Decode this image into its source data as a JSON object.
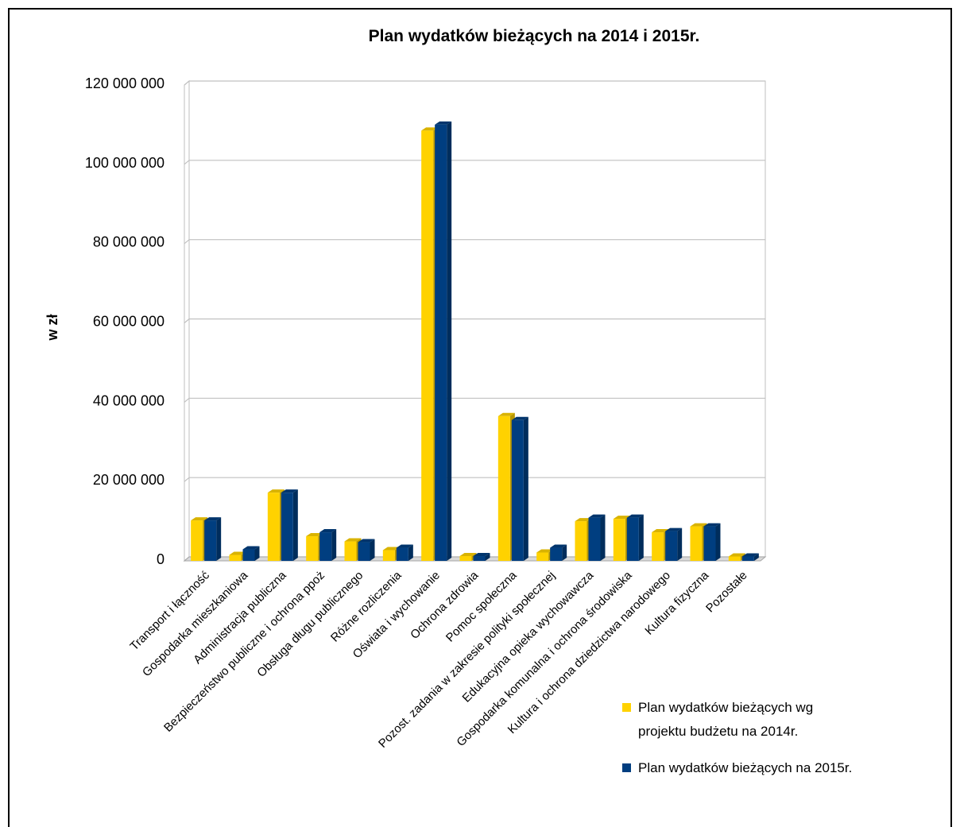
{
  "chart_data": {
    "type": "bar",
    "title": "Plan wydatków bieżących na 2014 i 2015r.",
    "ylabel": "w zł",
    "xlabel": "",
    "ylim": [
      0,
      120000000
    ],
    "yticks": [
      0,
      20000000,
      40000000,
      60000000,
      80000000,
      100000000,
      120000000
    ],
    "ytick_labels": [
      "0",
      "20 000 000",
      "40 000 000",
      "60 000 000",
      "80 000 000",
      "100 000 000",
      "120 000 000"
    ],
    "grid": true,
    "legend_position": "bottom-right",
    "categories": [
      "Transport i łączność",
      "Gospodarka mieszkaniowa",
      "Administracja publiczna",
      "Bezpieczeństwo publiczne i ochrona ppoż",
      "Obsługa długu publicznego",
      "Różne rozliczenia",
      "Oświata i wychowanie",
      "Ochrona zdrowia",
      "Pomoc społeczna",
      "Pozost. zadania w zakresie polityki społecznej",
      "Edukacyjna opieka wychowawcza",
      "Gospodarka komunalna i ochrona środowiska",
      "Kultura i ochrona dziedzictwa narodowego",
      "Kultura fizyczna",
      "Pozostałe"
    ],
    "series": [
      {
        "name": "Plan wydatków bieżących wg projektu budżetu na 2014r.",
        "color": "#FFD200",
        "values": [
          10200000,
          1500000,
          17200000,
          6200000,
          4900000,
          2700000,
          108500000,
          1200000,
          36500000,
          2100000,
          10000000,
          10600000,
          7200000,
          8700000,
          1100000
        ]
      },
      {
        "name": "Plan wydatków bieżących na 2015r.",
        "color": "#003E80",
        "values": [
          10200000,
          2900000,
          17200000,
          7200000,
          4700000,
          3300000,
          110000000,
          1200000,
          35500000,
          3300000,
          10900000,
          10900000,
          7500000,
          8700000,
          1100000
        ]
      }
    ]
  },
  "legend": {
    "series1_line1": "Plan wydatków bieżących wg",
    "series1_line2": "projektu budżetu na 2014r.",
    "series2": "Plan wydatków bieżących na 2015r."
  }
}
